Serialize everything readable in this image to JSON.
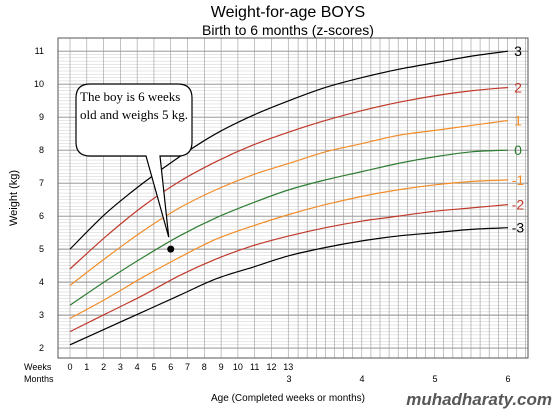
{
  "chart_data": {
    "type": "line",
    "title": "Weight-for-age  BOYS",
    "subtitle": "Birth to 6 months (z-scores)",
    "xlabel": "Age (Completed weeks or months)",
    "ylabel": "Weight (kg)",
    "ylim": [
      1.7,
      11.4
    ],
    "y_ticks": [
      "2",
      "3",
      "4",
      "5",
      "6",
      "7",
      "8",
      "9",
      "10",
      "11"
    ],
    "week_row_label": "Weeks",
    "month_row_label": "Months",
    "week_ticks": [
      "0",
      "1",
      "2",
      "3",
      "4",
      "5",
      "6",
      "7",
      "8",
      "9",
      "10",
      "11",
      "12",
      "13"
    ],
    "month_ticks": [
      "3",
      "4",
      "5",
      "6"
    ],
    "grid": true,
    "series": [
      {
        "name": "3",
        "color": "#000000",
        "x_months": [
          0,
          0.5,
          1,
          1.5,
          2,
          2.5,
          3,
          3.5,
          4,
          4.5,
          5,
          5.5,
          6
        ],
        "values": [
          5.0,
          6.1,
          7.0,
          7.8,
          8.5,
          9.05,
          9.5,
          9.9,
          10.2,
          10.45,
          10.65,
          10.85,
          11.0
        ]
      },
      {
        "name": "2",
        "color": "#c0392b",
        "x_months": [
          0,
          0.5,
          1,
          1.5,
          2,
          2.5,
          3,
          3.5,
          4,
          4.5,
          5,
          5.5,
          6
        ],
        "values": [
          4.4,
          5.4,
          6.3,
          7.05,
          7.65,
          8.15,
          8.55,
          8.9,
          9.2,
          9.45,
          9.65,
          9.8,
          9.9
        ]
      },
      {
        "name": "1",
        "color": "#f28c28",
        "x_months": [
          0,
          0.5,
          1,
          1.5,
          2,
          2.5,
          3,
          3.5,
          4,
          4.5,
          5,
          5.5,
          6
        ],
        "values": [
          3.9,
          4.75,
          5.55,
          6.25,
          6.8,
          7.25,
          7.6,
          7.95,
          8.2,
          8.45,
          8.6,
          8.75,
          8.9
        ]
      },
      {
        "name": "0",
        "color": "#2e7d32",
        "x_months": [
          0,
          0.5,
          1,
          1.5,
          2,
          2.5,
          3,
          3.5,
          4,
          4.5,
          5,
          5.5,
          6
        ],
        "values": [
          3.3,
          4.05,
          4.75,
          5.4,
          5.95,
          6.4,
          6.8,
          7.1,
          7.35,
          7.6,
          7.8,
          7.95,
          8.0
        ]
      },
      {
        "name": "-1",
        "color": "#f28c28",
        "x_months": [
          0,
          0.5,
          1,
          1.5,
          2,
          2.5,
          3,
          3.5,
          4,
          4.5,
          5,
          5.5,
          6
        ],
        "values": [
          2.9,
          3.5,
          4.15,
          4.75,
          5.3,
          5.7,
          6.05,
          6.35,
          6.6,
          6.8,
          6.95,
          7.05,
          7.1
        ]
      },
      {
        "name": "-2",
        "color": "#c0392b",
        "x_months": [
          0,
          0.5,
          1,
          1.5,
          2,
          2.5,
          3,
          3.5,
          4,
          4.5,
          5,
          5.5,
          6
        ],
        "values": [
          2.5,
          3.05,
          3.6,
          4.2,
          4.7,
          5.1,
          5.4,
          5.65,
          5.85,
          6.0,
          6.15,
          6.25,
          6.35
        ]
      },
      {
        "name": "-3",
        "color": "#000000",
        "x_months": [
          0,
          0.5,
          1,
          1.5,
          2,
          2.5,
          3,
          3.5,
          4,
          4.5,
          5,
          5.5,
          6
        ],
        "values": [
          2.1,
          2.6,
          3.1,
          3.6,
          4.1,
          4.45,
          4.8,
          5.05,
          5.25,
          5.4,
          5.5,
          5.6,
          5.65
        ]
      }
    ],
    "annotation": {
      "text": "The boy is 6 weeks old and weighs 5 kg.",
      "point_weeks": 6,
      "point_weight": 5
    }
  },
  "watermark": "muhadharaty.com"
}
